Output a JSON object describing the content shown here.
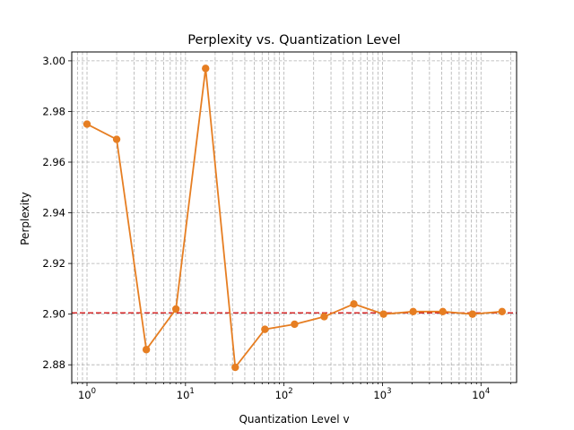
{
  "chart_data": {
    "type": "line",
    "title": "Perplexity vs. Quantization Level",
    "xlabel": "Quantization Level v",
    "ylabel": "Perplexity",
    "x_scale": "log",
    "xlim": [
      0.7,
      23000
    ],
    "ylim": [
      2.873,
      3.0035
    ],
    "grid": "both, dashed",
    "x_ticks": [
      {
        "base": "10",
        "exp": "0",
        "value": 1
      },
      {
        "base": "10",
        "exp": "1",
        "value": 10
      },
      {
        "base": "10",
        "exp": "2",
        "value": 100
      },
      {
        "base": "10",
        "exp": "3",
        "value": 1000
      },
      {
        "base": "10",
        "exp": "4",
        "value": 10000
      }
    ],
    "y_ticks": [
      {
        "label": "2.88",
        "value": 2.88
      },
      {
        "label": "2.90",
        "value": 2.9
      },
      {
        "label": "2.92",
        "value": 2.92
      },
      {
        "label": "2.94",
        "value": 2.94
      },
      {
        "label": "2.96",
        "value": 2.96
      },
      {
        "label": "2.98",
        "value": 2.98
      },
      {
        "label": "3.00",
        "value": 3.0
      }
    ],
    "series": [
      {
        "color": "#e67e22",
        "x": [
          1,
          2,
          4,
          8,
          16,
          32,
          64,
          128,
          256,
          512,
          1024,
          2048,
          4096,
          8192,
          16384
        ],
        "y": [
          2.975,
          2.969,
          2.886,
          2.902,
          2.997,
          2.879,
          2.894,
          2.896,
          2.899,
          2.904,
          2.9,
          2.901,
          2.901,
          2.9,
          2.901
        ]
      }
    ],
    "reference_line": {
      "y": 2.9005,
      "color": "#d62728",
      "style": "dashed"
    }
  }
}
